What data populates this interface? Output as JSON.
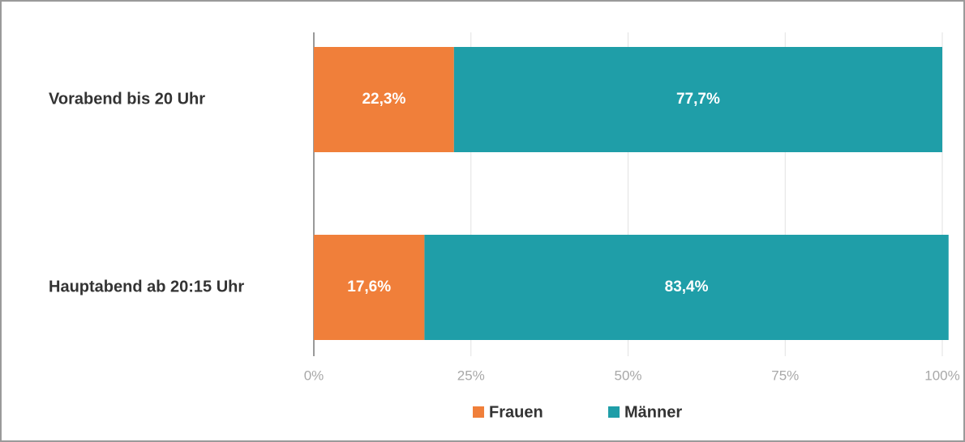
{
  "chart_data": {
    "type": "stacked-bar-horizontal",
    "categories": [
      "Vorabend bis 20 Uhr",
      "Hauptabend ab 20:15 Uhr"
    ],
    "series": [
      {
        "name": "Frauen",
        "color": "#f07f3a",
        "values": [
          22.3,
          17.6
        ],
        "value_labels": [
          "22,3%",
          "17,6%"
        ]
      },
      {
        "name": "Männer",
        "color": "#1f9ea8",
        "values": [
          77.7,
          83.4
        ],
        "value_labels": [
          "77,7%",
          "83,4%"
        ]
      }
    ],
    "xlim": [
      0,
      100
    ],
    "xticks": [
      {
        "value": 0,
        "label": "0%"
      },
      {
        "value": 25,
        "label": "25%"
      },
      {
        "value": 50,
        "label": "50%"
      },
      {
        "value": 75,
        "label": "75%"
      },
      {
        "value": 100,
        "label": "100%"
      }
    ],
    "grid": true,
    "legend": "bottom"
  }
}
